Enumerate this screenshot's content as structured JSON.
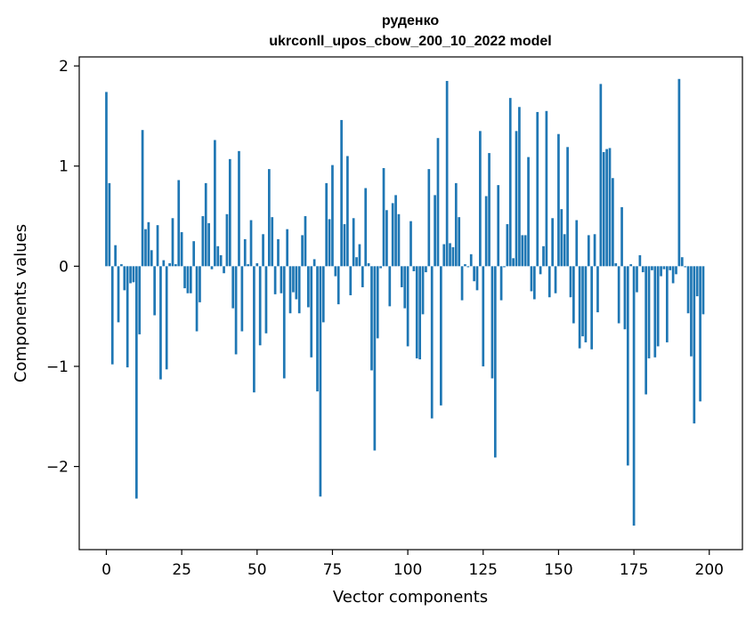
{
  "colors": {
    "bar": "#1f77b4",
    "background": "#ffffff",
    "axes": "#000000"
  },
  "chart_data": {
    "type": "bar",
    "title": "руденко",
    "subtitle": "ukrconll_upos_cbow_200_10_2022 model",
    "xlabel": "Vector components",
    "ylabel": "Components values",
    "xlim": [
      -9,
      211
    ],
    "ylim": [
      -2.83,
      2.09
    ],
    "xticks": [
      0,
      25,
      50,
      75,
      100,
      125,
      150,
      175,
      200
    ],
    "yticks": [
      -2,
      -1,
      0,
      1,
      2
    ],
    "ytick_labels": [
      "−2",
      "−1",
      "0",
      "1",
      "2"
    ],
    "grid": false,
    "legend": "none",
    "values": [
      1.74,
      0.83,
      -0.98,
      0.21,
      -0.56,
      0.02,
      -0.24,
      -1.01,
      -0.17,
      -0.16,
      -2.32,
      -0.68,
      1.36,
      0.37,
      0.44,
      0.16,
      -0.49,
      0.41,
      -1.13,
      0.06,
      -1.03,
      0.03,
      0.48,
      0.02,
      0.86,
      0.34,
      -0.22,
      -0.27,
      -0.27,
      0.25,
      -0.65,
      -0.36,
      0.5,
      0.83,
      0.43,
      -0.03,
      1.26,
      0.2,
      0.11,
      -0.07,
      0.52,
      1.07,
      -0.42,
      -0.88,
      1.15,
      -0.65,
      0.27,
      0.02,
      0.46,
      -1.26,
      0.03,
      -0.79,
      0.32,
      -0.67,
      0.97,
      0.49,
      -0.28,
      0.27,
      -0.27,
      -1.12,
      0.37,
      -0.47,
      -0.26,
      -0.33,
      -0.47,
      0.31,
      0.5,
      -0.41,
      -0.91,
      0.07,
      -1.25,
      -2.3,
      -0.56,
      0.83,
      0.47,
      1.01,
      -0.1,
      -0.38,
      1.46,
      0.42,
      1.1,
      -0.29,
      0.48,
      0.09,
      0.22,
      -0.21,
      0.78,
      0.03,
      -1.04,
      -1.84,
      -0.72,
      -0.02,
      0.98,
      0.56,
      -0.4,
      0.63,
      0.71,
      0.52,
      -0.21,
      -0.42,
      -0.8,
      0.45,
      -0.05,
      -0.92,
      -0.93,
      -0.48,
      -0.06,
      0.97,
      -1.52,
      0.71,
      1.28,
      -1.39,
      0.22,
      1.85,
      0.23,
      0.19,
      0.83,
      0.49,
      -0.34,
      0.02,
      -0.01,
      0.12,
      -0.15,
      -0.24,
      1.35,
      -1.0,
      0.7,
      1.13,
      -1.12,
      -1.91,
      0.81,
      -0.34,
      -0.01,
      0.42,
      1.68,
      0.08,
      1.35,
      1.59,
      0.31,
      0.31,
      1.09,
      -0.25,
      -0.33,
      1.54,
      -0.08,
      0.2,
      1.55,
      -0.31,
      0.48,
      -0.27,
      1.32,
      0.57,
      0.32,
      1.19,
      -0.31,
      -0.57,
      0.46,
      -0.82,
      -0.7,
      -0.76,
      0.31,
      -0.83,
      0.32,
      -0.46,
      1.82,
      1.14,
      1.17,
      1.18,
      0.88,
      0.03,
      -0.57,
      0.59,
      -0.63,
      -1.99,
      0.02,
      -2.59,
      -0.26,
      0.11,
      -0.06,
      -1.28,
      -0.92,
      -0.04,
      -0.91,
      -0.8,
      -0.1,
      -0.03,
      -0.76,
      -0.04,
      -0.17,
      -0.08,
      1.87,
      0.09,
      -0.01,
      -0.47,
      -0.9,
      -1.57,
      -0.3,
      -1.35,
      -0.48
    ]
  }
}
